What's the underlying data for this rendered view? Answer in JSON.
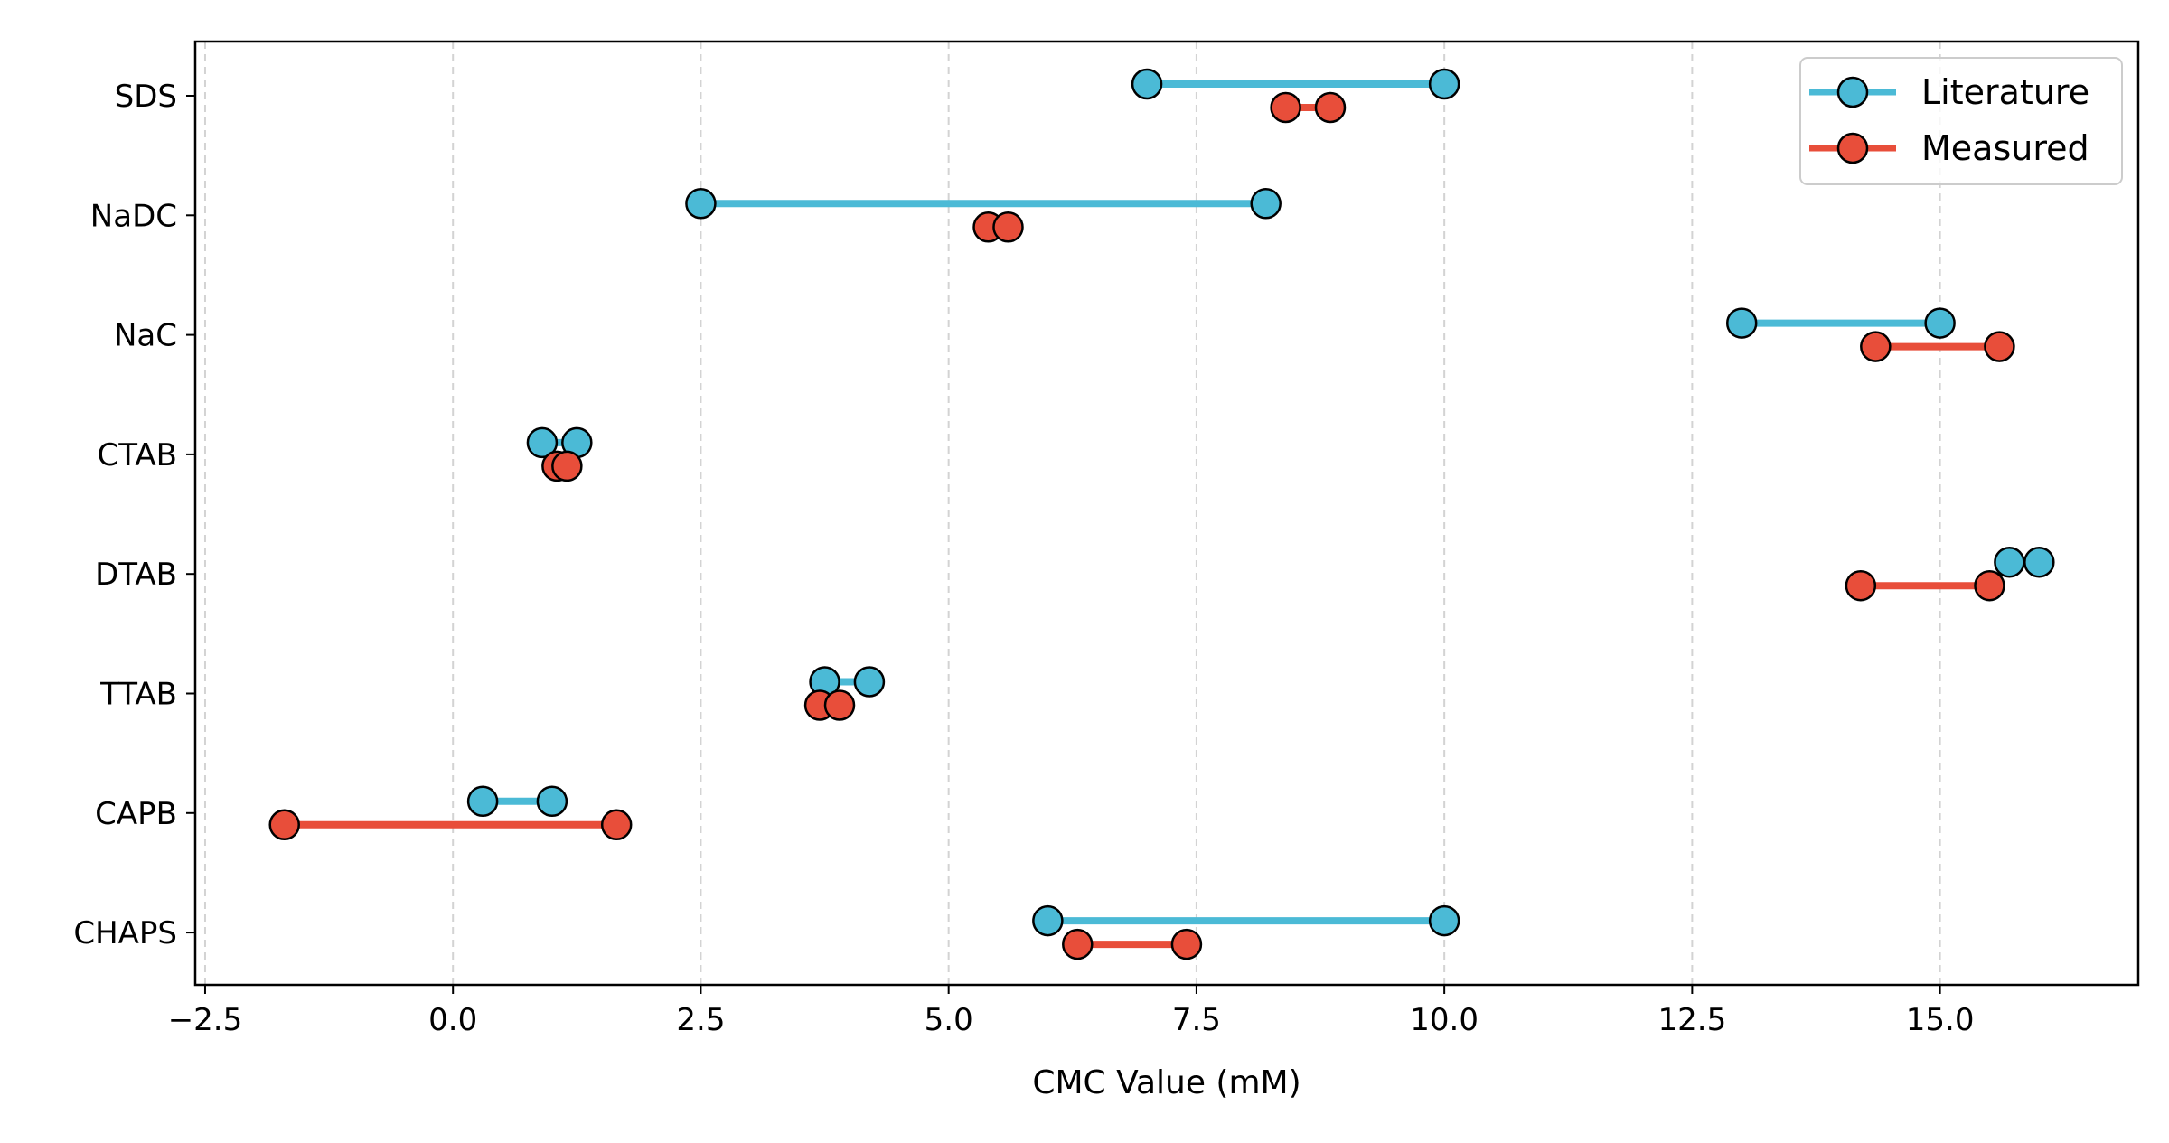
{
  "chart_data": {
    "type": "dumbbell",
    "title": "",
    "xlabel": "CMC Value (mM)",
    "ylabel": "",
    "xlim": [
      -2.6,
      17.0
    ],
    "xticks": [
      -2.5,
      0.0,
      2.5,
      5.0,
      7.5,
      10.0,
      12.5,
      15.0
    ],
    "xtick_labels": [
      "−2.5",
      "0.0",
      "2.5",
      "5.0",
      "7.5",
      "10.0",
      "12.5",
      "15.0"
    ],
    "grid": "vertical dashed",
    "legend_position": "top-right",
    "categories": [
      "SDS",
      "NaDC",
      "NaC",
      "CTAB",
      "DTAB",
      "TTAB",
      "CAPB",
      "CHAPS"
    ],
    "series": [
      {
        "name": "Literature",
        "color": "#4bbad6",
        "ranges": [
          [
            7.0,
            10.0
          ],
          [
            2.5,
            8.2
          ],
          [
            13.0,
            15.0
          ],
          [
            0.9,
            1.25
          ],
          [
            15.7,
            16.0
          ],
          [
            3.75,
            4.2
          ],
          [
            0.3,
            1.0
          ],
          [
            6.0,
            10.0
          ]
        ]
      },
      {
        "name": "Measured",
        "color": "#e84e3a",
        "ranges": [
          [
            8.4,
            8.85
          ],
          [
            5.4,
            5.6
          ],
          [
            14.35,
            15.6
          ],
          [
            1.05,
            1.15
          ],
          [
            14.2,
            15.5
          ],
          [
            3.7,
            3.9
          ],
          [
            -1.7,
            1.65
          ],
          [
            6.3,
            7.4
          ]
        ]
      }
    ]
  }
}
